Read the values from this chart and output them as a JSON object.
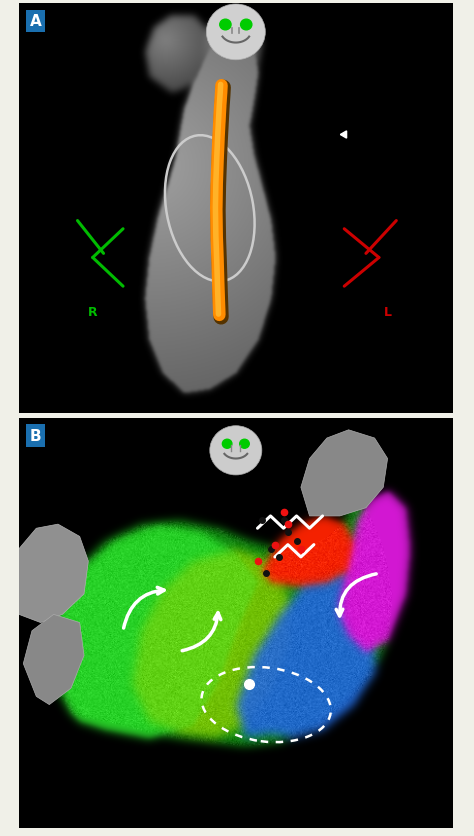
{
  "bg_color": "#f0f0e8",
  "right_border_color": "#c8102e",
  "panel_bg": "#000000",
  "panel_A_label": "A",
  "panel_B_label": "B",
  "label_bg": "#1a6faf",
  "label_color": "#ffffff",
  "label_fontsize": 11
}
